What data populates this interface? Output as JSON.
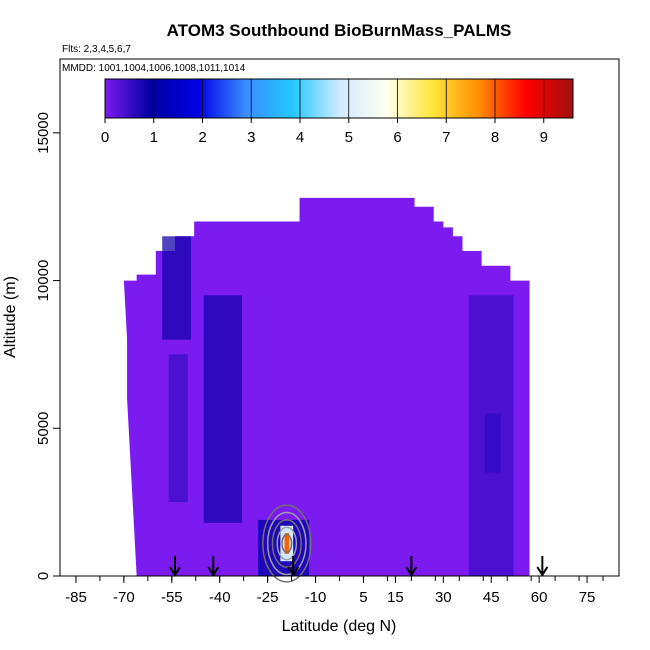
{
  "chart_data": {
    "type": "heatmap",
    "title": "ATOM3 Southbound BioBurnMass_PALMS",
    "flights_label": "Flts: 2,3,4,5,6,7",
    "dates_label": "MMDD: 1001,1004,1006,1008,1011,1014",
    "xlabel": "Latitude (deg N)",
    "ylabel": "Altitude (m)",
    "xlim": [
      -90,
      85
    ],
    "ylim": [
      0,
      17500
    ],
    "x_ticks": [
      -85,
      -70,
      -55,
      -40,
      -25,
      -10,
      5,
      15,
      30,
      45,
      60,
      75
    ],
    "y_ticks": [
      0,
      5000,
      10000,
      15000
    ],
    "colorbar": {
      "min": 0,
      "max": 9.6,
      "ticks": [
        0,
        1,
        2,
        3,
        4,
        5,
        6,
        7,
        8,
        9
      ],
      "colors": [
        "#7b1bf0",
        "#0000a0",
        "#0000e6",
        "#3a8cff",
        "#22c8ff",
        "#cfeaff",
        "#fffff0",
        "#ffe63a",
        "#ff8c00",
        "#ff0000",
        "#a01010"
      ]
    },
    "arrow_latitudes": [
      -54,
      -42,
      -17,
      20,
      61
    ],
    "curtain_profile": [
      {
        "lat": -69,
        "top": 10000
      },
      {
        "lat": -66,
        "top": 10200
      },
      {
        "lat": -63,
        "top": 10200
      },
      {
        "lat": -60,
        "top": 11000
      },
      {
        "lat": -57,
        "top": 11000
      },
      {
        "lat": -54,
        "top": 11500
      },
      {
        "lat": -51,
        "top": 11500
      },
      {
        "lat": -48,
        "top": 12000
      },
      {
        "lat": -45,
        "top": 12000
      },
      {
        "lat": -42,
        "top": 12000
      },
      {
        "lat": -39,
        "top": 12000
      },
      {
        "lat": -36,
        "top": 12000
      },
      {
        "lat": -33,
        "top": 12000
      },
      {
        "lat": -30,
        "top": 12000
      },
      {
        "lat": -27,
        "top": 12000
      },
      {
        "lat": -24,
        "top": 12000
      },
      {
        "lat": -21,
        "top": 12000
      },
      {
        "lat": -18,
        "top": 12000
      },
      {
        "lat": -15,
        "top": 12800
      },
      {
        "lat": -12,
        "top": 12800
      },
      {
        "lat": -9,
        "top": 12800
      },
      {
        "lat": -6,
        "top": 12800
      },
      {
        "lat": -3,
        "top": 12800
      },
      {
        "lat": 0,
        "top": 12800
      },
      {
        "lat": 3,
        "top": 12800
      },
      {
        "lat": 6,
        "top": 12800
      },
      {
        "lat": 9,
        "top": 12800
      },
      {
        "lat": 12,
        "top": 12800
      },
      {
        "lat": 15,
        "top": 12800
      },
      {
        "lat": 18,
        "top": 12800
      },
      {
        "lat": 21,
        "top": 12500
      },
      {
        "lat": 24,
        "top": 12500
      },
      {
        "lat": 27,
        "top": 12000
      },
      {
        "lat": 30,
        "top": 11800
      },
      {
        "lat": 33,
        "top": 11500
      },
      {
        "lat": 36,
        "top": 11000
      },
      {
        "lat": 39,
        "top": 11000
      },
      {
        "lat": 42,
        "top": 10500
      },
      {
        "lat": 45,
        "top": 10500
      },
      {
        "lat": 48,
        "top": 10500
      },
      {
        "lat": 51,
        "top": 10000
      },
      {
        "lat": 54,
        "top": 10000
      }
    ],
    "curtain_bottom_edge": [
      {
        "alt": 10000,
        "lat": -70
      },
      {
        "alt": 8000,
        "lat": -69
      },
      {
        "alt": 6000,
        "lat": -69
      },
      {
        "alt": 4000,
        "lat": -68
      },
      {
        "alt": 2000,
        "lat": -67
      },
      {
        "alt": 0,
        "lat": -66
      }
    ],
    "enhanced_regions": [
      {
        "lat": [
          -45,
          -33
        ],
        "alt": [
          1800,
          9500
        ],
        "value": 0.8
      },
      {
        "lat": [
          -58,
          -49
        ],
        "alt": [
          8000,
          11500
        ],
        "value": 0.8
      },
      {
        "lat": [
          -56,
          -50
        ],
        "alt": [
          2500,
          7500
        ],
        "value": 0.5
      },
      {
        "lat": [
          43,
          48
        ],
        "alt": [
          3500,
          5500
        ],
        "value": 1.5
      },
      {
        "lat": [
          38,
          52
        ],
        "alt": [
          0,
          9500
        ],
        "value": 0.5
      },
      {
        "lat": [
          -28,
          -12
        ],
        "alt": [
          0,
          1900
        ],
        "value": 1.1
      }
    ],
    "hotspot": {
      "lat": -19,
      "alt": 1100,
      "value": 8.0
    },
    "contours": [
      {
        "lat": -19,
        "alt": 1100,
        "rx": [
          1.5,
          3,
          4.5,
          6,
          7.5
        ],
        "ry": [
          300,
          550,
          800,
          1050,
          1300
        ]
      }
    ]
  }
}
